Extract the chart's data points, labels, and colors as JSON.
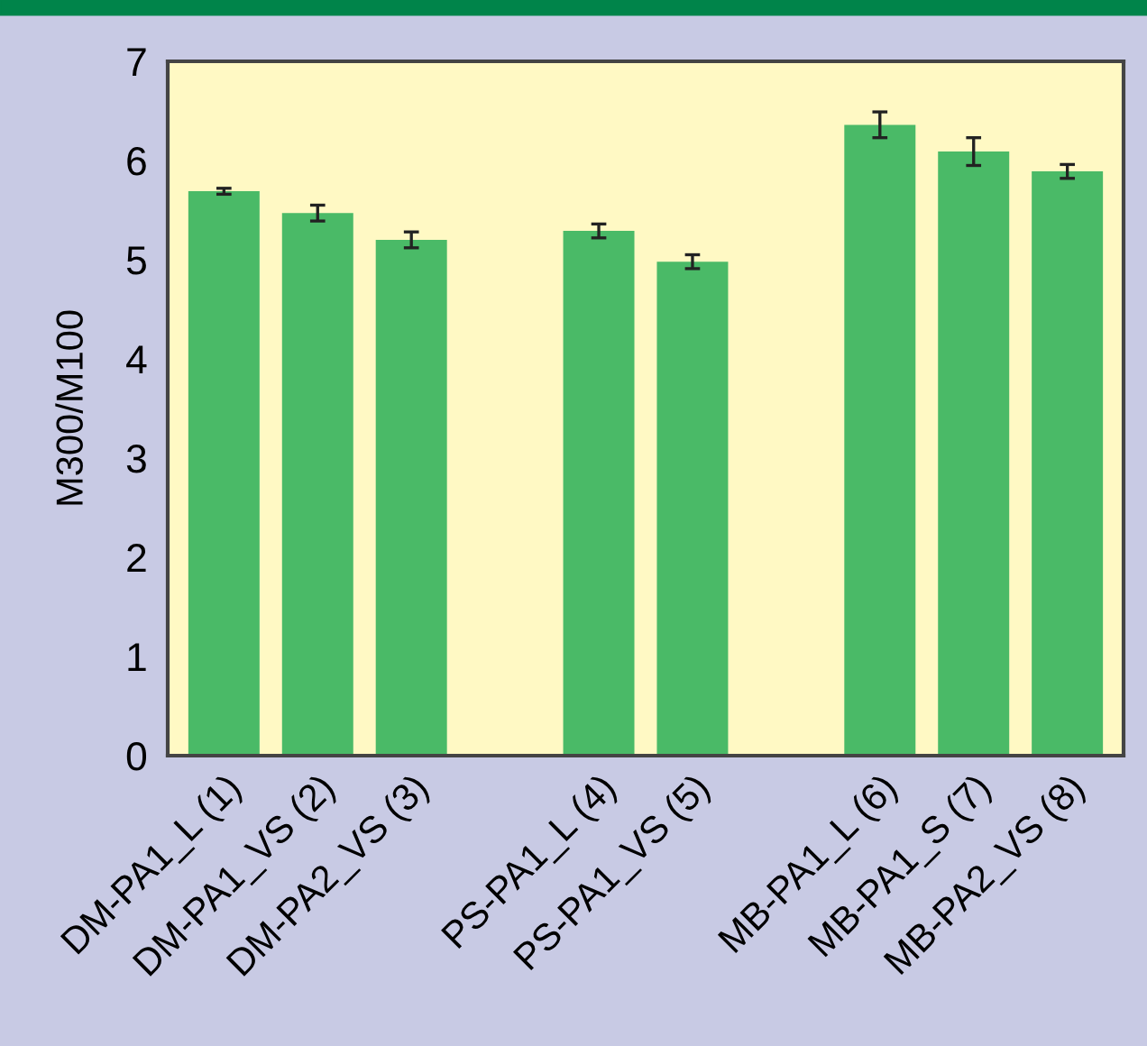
{
  "chart_data": {
    "type": "bar",
    "ylabel": "M300/M100",
    "categories": [
      "DM-PA1_L (1)",
      "DM-PA1_VS (2)",
      "DM-PA2_VS (3)",
      null,
      "PS-PA1_L (4)",
      "PS-PA1_VS (5)",
      null,
      "MB-PA1_L (6)",
      "MB-PA1_S (7)",
      "MB-PA2_VS (8)"
    ],
    "values": [
      5.69,
      5.47,
      5.2,
      null,
      5.29,
      4.98,
      null,
      6.36,
      6.09,
      5.89
    ],
    "errors": [
      0.03,
      0.08,
      0.08,
      null,
      0.07,
      0.07,
      null,
      0.13,
      0.14,
      0.07
    ],
    "color": "#4aba67",
    "ylim": [
      0,
      7
    ],
    "yticks": [
      0,
      1,
      2,
      3,
      4,
      5,
      6,
      7
    ],
    "grid": false
  }
}
